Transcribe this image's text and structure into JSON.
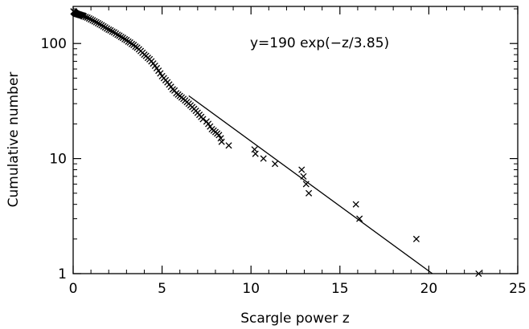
{
  "chart_data": {
    "type": "scatter",
    "title": "",
    "xlabel": "Scargle power z",
    "ylabel": "Cumulative number",
    "xlim": [
      0,
      25
    ],
    "ylim": [
      1,
      210
    ],
    "yscale": "log",
    "grid": false,
    "xticks": [
      0,
      5,
      10,
      15,
      20,
      25
    ],
    "xtick_labels": [
      "0",
      "5",
      "10",
      "15",
      "20",
      "25"
    ],
    "yticks": [
      1,
      10,
      100
    ],
    "ytick_labels": [
      "1",
      "10",
      "100"
    ],
    "annotation": "y=190 exp(−z/3.85)",
    "marker": "x",
    "fit_line": {
      "formula": "y=190 exp(-z/3.85)",
      "amplitude": 190,
      "scale": 3.85,
      "x_range": [
        6.5,
        20.2
      ]
    },
    "series": [
      {
        "points": [
          [
            0.02,
            190
          ],
          [
            0.05,
            188
          ],
          [
            0.08,
            186
          ],
          [
            0.11,
            184
          ],
          [
            0.14,
            183
          ],
          [
            0.17,
            182
          ],
          [
            0.2,
            181
          ],
          [
            0.25,
            180
          ],
          [
            0.3,
            179
          ],
          [
            0.35,
            178
          ],
          [
            0.4,
            177
          ],
          [
            0.45,
            176
          ],
          [
            0.5,
            175
          ],
          [
            0.55,
            174
          ],
          [
            0.6,
            172
          ],
          [
            0.7,
            170
          ],
          [
            0.8,
            168
          ],
          [
            0.9,
            165
          ],
          [
            1.0,
            162
          ],
          [
            1.1,
            159
          ],
          [
            1.2,
            156
          ],
          [
            1.3,
            153
          ],
          [
            1.4,
            150
          ],
          [
            1.5,
            147
          ],
          [
            1.6,
            144
          ],
          [
            1.7,
            141
          ],
          [
            1.8,
            138
          ],
          [
            1.9,
            135
          ],
          [
            2.0,
            132
          ],
          [
            2.1,
            130
          ],
          [
            2.2,
            127
          ],
          [
            2.3,
            125
          ],
          [
            2.4,
            122
          ],
          [
            2.5,
            119
          ],
          [
            2.6,
            117
          ],
          [
            2.7,
            114
          ],
          [
            2.8,
            112
          ],
          [
            2.9,
            109
          ],
          [
            3.0,
            107
          ],
          [
            3.1,
            104
          ],
          [
            3.2,
            102
          ],
          [
            3.3,
            99
          ],
          [
            3.4,
            97
          ],
          [
            3.5,
            94
          ],
          [
            3.6,
            92
          ],
          [
            3.7,
            89
          ],
          [
            3.8,
            86
          ],
          [
            3.9,
            83
          ],
          [
            4.0,
            80
          ],
          [
            4.1,
            78
          ],
          [
            4.2,
            75
          ],
          [
            4.3,
            73
          ],
          [
            4.4,
            70
          ],
          [
            4.5,
            67
          ],
          [
            4.6,
            64
          ],
          [
            4.7,
            61
          ],
          [
            4.8,
            58
          ],
          [
            4.9,
            55
          ],
          [
            5.0,
            52
          ],
          [
            5.1,
            50
          ],
          [
            5.2,
            48
          ],
          [
            5.3,
            46
          ],
          [
            5.4,
            44
          ],
          [
            5.5,
            42
          ],
          [
            5.6,
            40
          ],
          [
            5.7,
            39
          ],
          [
            5.8,
            37
          ],
          [
            5.9,
            36
          ],
          [
            6.0,
            35
          ],
          [
            6.1,
            34
          ],
          [
            6.2,
            33
          ],
          [
            6.3,
            32
          ],
          [
            6.4,
            31
          ],
          [
            6.5,
            30
          ],
          [
            6.6,
            29
          ],
          [
            6.7,
            28
          ],
          [
            6.8,
            27
          ],
          [
            6.9,
            26
          ],
          [
            7.0,
            25
          ],
          [
            7.1,
            24
          ],
          [
            7.2,
            23
          ],
          [
            7.3,
            22
          ],
          [
            7.5,
            21
          ],
          [
            7.6,
            20
          ],
          [
            7.7,
            19
          ],
          [
            7.8,
            18
          ],
          [
            7.9,
            17.5
          ],
          [
            8.0,
            17
          ],
          [
            8.1,
            16.5
          ],
          [
            8.2,
            16
          ],
          [
            8.3,
            15
          ],
          [
            8.35,
            14
          ],
          [
            8.75,
            13
          ],
          [
            10.2,
            12
          ],
          [
            10.25,
            11
          ],
          [
            10.7,
            10
          ],
          [
            11.35,
            9
          ],
          [
            12.85,
            8
          ],
          [
            12.95,
            7
          ],
          [
            13.1,
            6
          ],
          [
            13.25,
            5
          ],
          [
            15.9,
            4
          ],
          [
            16.1,
            3
          ],
          [
            19.3,
            2
          ],
          [
            22.8,
            1
          ]
        ]
      }
    ]
  }
}
